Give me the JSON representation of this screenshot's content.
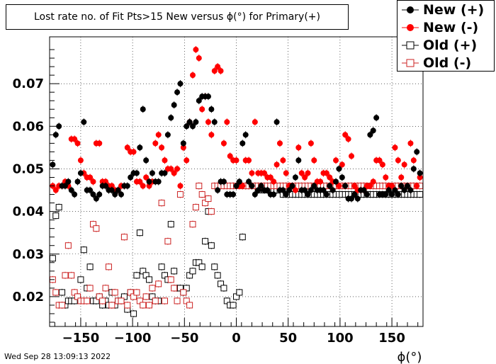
{
  "title": "Lost rate no. of Fit Pts>15 New versus ϕ(°) for Primary(+)",
  "timestamp": "Wed Sep 28 13:09:13 2022",
  "xaxis_label": "ϕ(°)",
  "legend": [
    {
      "label": "New (+)",
      "marker": "filled-circle",
      "color": "#000000"
    },
    {
      "label": "New (-)",
      "marker": "filled-circle",
      "color": "#ff0000"
    },
    {
      "label": "Old (+)",
      "marker": "open-square",
      "color": "#000000"
    },
    {
      "label": "Old (-)",
      "marker": "open-square",
      "color": "#cc2222"
    }
  ],
  "chart_data": {
    "type": "scatter",
    "xlim": [
      -180,
      180
    ],
    "ylim": [
      0.013,
      0.081
    ],
    "xticks": [
      -150,
      -100,
      -50,
      0,
      50,
      100,
      150
    ],
    "yticks": [
      0.02,
      0.03,
      0.04,
      0.05,
      0.06,
      0.07
    ],
    "ytick_labels": [
      "0.02",
      "0.03",
      "0.04",
      "0.05",
      "0.06",
      "0.07"
    ],
    "xtick_labels": [
      "−150",
      "−100",
      "−50",
      "0",
      "50",
      "100",
      "150"
    ],
    "grid": true,
    "legend_position": "top-right",
    "x": [
      -177,
      -174,
      -171,
      -168,
      -165,
      -162,
      -159,
      -156,
      -153,
      -150,
      -147,
      -144,
      -141,
      -138,
      -135,
      -132,
      -129,
      -126,
      -123,
      -120,
      -117,
      -114,
      -111,
      -108,
      -105,
      -102,
      -99,
      -96,
      -93,
      -90,
      -87,
      -84,
      -81,
      -78,
      -75,
      -72,
      -69,
      -66,
      -63,
      -60,
      -57,
      -54,
      -51,
      -48,
      -45,
      -42,
      -39,
      -36,
      -33,
      -30,
      -27,
      -24,
      -21,
      -18,
      -15,
      -12,
      -9,
      -6,
      -3,
      0,
      3,
      6,
      9,
      12,
      15,
      18,
      21,
      24,
      27,
      30,
      33,
      36,
      39,
      42,
      45,
      48,
      51,
      54,
      57,
      60,
      63,
      66,
      69,
      72,
      75,
      78,
      81,
      84,
      87,
      90,
      93,
      96,
      99,
      102,
      105,
      108,
      111,
      114,
      117,
      120,
      123,
      126,
      129,
      132,
      135,
      138,
      141,
      144,
      147,
      150,
      153,
      156,
      159,
      162,
      165,
      168,
      171,
      174,
      177
    ],
    "series": [
      {
        "name": "New (+)",
        "values": [
          0.051,
          0.058,
          0.06,
          0.046,
          0.046,
          0.047,
          0.045,
          0.044,
          0.047,
          0.049,
          0.061,
          0.045,
          0.045,
          0.044,
          0.043,
          0.044,
          0.046,
          0.046,
          0.045,
          0.045,
          0.044,
          0.045,
          0.044,
          0.046,
          0.046,
          0.048,
          0.049,
          0.049,
          0.055,
          0.064,
          0.052,
          0.047,
          0.049,
          0.047,
          0.047,
          0.049,
          0.049,
          0.058,
          0.062,
          0.065,
          0.068,
          0.07,
          0.056,
          0.06,
          0.061,
          0.06,
          0.061,
          0.066,
          0.067,
          0.067,
          0.067,
          0.064,
          0.061,
          0.045,
          0.047,
          0.047,
          0.044,
          0.044,
          0.044,
          0.046,
          0.047,
          0.056,
          0.058,
          0.047,
          0.046,
          0.044,
          0.045,
          0.046,
          0.045,
          0.045,
          0.044,
          0.044,
          0.061,
          0.045,
          0.045,
          0.044,
          0.045,
          0.046,
          0.048,
          0.052,
          0.045,
          0.045,
          0.044,
          0.045,
          0.046,
          0.045,
          0.045,
          0.045,
          0.044,
          0.046,
          0.045,
          0.047,
          0.05,
          0.048,
          0.046,
          0.043,
          0.043,
          0.044,
          0.043,
          0.045,
          0.045,
          0.044,
          0.058,
          0.059,
          0.062,
          0.044,
          0.044,
          0.044,
          0.045,
          0.044,
          0.045,
          0.044,
          0.046,
          0.045,
          0.046,
          0.045,
          0.05,
          0.054,
          0.049
        ]
      },
      {
        "name": "New (-)",
        "values": [
          0.046,
          0.045,
          0.046,
          0.046,
          0.047,
          0.046,
          0.057,
          0.057,
          0.056,
          0.052,
          0.049,
          0.048,
          0.048,
          0.047,
          0.056,
          0.056,
          0.047,
          0.047,
          0.046,
          0.046,
          0.045,
          0.045,
          0.046,
          0.046,
          0.055,
          0.054,
          0.054,
          0.047,
          0.047,
          0.046,
          0.048,
          0.046,
          0.047,
          0.056,
          0.058,
          0.055,
          0.052,
          0.05,
          0.05,
          0.049,
          0.05,
          0.046,
          0.055,
          0.052,
          0.061,
          0.072,
          0.078,
          0.076,
          0.064,
          0.067,
          0.061,
          0.058,
          0.073,
          0.074,
          0.073,
          0.056,
          0.061,
          0.053,
          0.052,
          0.052,
          0.046,
          0.046,
          0.052,
          0.052,
          0.049,
          0.061,
          0.049,
          0.049,
          0.049,
          0.048,
          0.048,
          0.047,
          0.051,
          0.056,
          0.052,
          0.049,
          0.046,
          0.046,
          0.045,
          0.055,
          0.049,
          0.048,
          0.049,
          0.056,
          0.052,
          0.047,
          0.047,
          0.049,
          0.049,
          0.048,
          0.047,
          0.052,
          0.046,
          0.051,
          0.058,
          0.057,
          0.053,
          0.046,
          0.045,
          0.045,
          0.045,
          0.046,
          0.046,
          0.047,
          0.052,
          0.052,
          0.051,
          0.048,
          0.046,
          0.046,
          0.055,
          0.052,
          0.048,
          0.051,
          0.046,
          0.056,
          0.052,
          0.046,
          0.048
        ]
      },
      {
        "name": "Old (+)",
        "values": [
          0.029,
          0.039,
          0.041,
          0.021,
          0.018,
          0.019,
          0.019,
          0.019,
          0.02,
          0.024,
          0.031,
          0.022,
          0.027,
          0.019,
          0.019,
          0.02,
          0.018,
          0.019,
          0.018,
          0.021,
          0.018,
          0.019,
          0.019,
          0.02,
          0.017,
          0.021,
          0.016,
          0.025,
          0.035,
          0.026,
          0.025,
          0.024,
          0.02,
          0.019,
          0.019,
          0.027,
          0.025,
          0.024,
          0.037,
          0.026,
          0.022,
          0.022,
          0.021,
          0.022,
          0.025,
          0.026,
          0.028,
          0.028,
          0.027,
          0.033,
          0.04,
          0.032,
          0.027,
          0.025,
          0.023,
          0.022,
          0.019,
          0.018,
          0.018,
          0.02,
          0.021,
          0.034,
          0.046,
          0.046,
          0.046,
          0.046,
          0.045,
          0.046,
          0.045,
          0.045,
          0.045,
          0.045,
          0.045,
          0.045,
          0.044,
          0.044,
          0.044,
          0.044,
          0.044,
          0.044,
          0.044,
          0.044,
          0.044,
          0.044,
          0.044,
          0.044,
          0.044,
          0.044,
          0.044,
          0.044,
          0.044,
          0.044,
          0.044,
          0.044,
          0.044,
          0.044,
          0.044,
          0.044,
          0.044,
          0.044,
          0.044,
          0.044,
          0.044,
          0.044,
          0.044,
          0.044,
          0.044,
          0.044,
          0.044,
          0.044,
          0.044,
          0.044,
          0.044,
          0.044,
          0.044,
          0.044,
          0.044,
          0.044,
          0.044
        ]
      },
      {
        "name": "Old (-)",
        "values": [
          0.024,
          0.021,
          0.018,
          0.018,
          0.025,
          0.032,
          0.025,
          0.021,
          0.02,
          0.019,
          0.019,
          0.019,
          0.022,
          0.037,
          0.036,
          0.02,
          0.019,
          0.022,
          0.027,
          0.018,
          0.021,
          0.019,
          0.019,
          0.034,
          0.018,
          0.021,
          0.02,
          0.021,
          0.019,
          0.018,
          0.02,
          0.018,
          0.022,
          0.019,
          0.023,
          0.042,
          0.019,
          0.033,
          0.024,
          0.022,
          0.019,
          0.044,
          0.021,
          0.019,
          0.018,
          0.037,
          0.041,
          0.046,
          0.044,
          0.042,
          0.043,
          0.04,
          0.046,
          0.046,
          0.046,
          0.046,
          0.046,
          0.046,
          0.046,
          0.046,
          0.046,
          0.046,
          0.046,
          0.046,
          0.046,
          0.046,
          0.046,
          0.046,
          0.046,
          0.046,
          0.046,
          0.046,
          0.046,
          0.046,
          0.046,
          0.046,
          0.046,
          0.046,
          0.046,
          0.046,
          0.046,
          0.046,
          0.046,
          0.046,
          0.046,
          0.046,
          0.046,
          0.046,
          0.046,
          0.046,
          0.046,
          0.046,
          0.046,
          0.046,
          0.046,
          0.046,
          0.046,
          0.046,
          0.046,
          0.046,
          0.046,
          0.046,
          0.046,
          0.046,
          0.046,
          0.046,
          0.046,
          0.046,
          0.046,
          0.046,
          0.046,
          0.046,
          0.046,
          0.046,
          0.046,
          0.046,
          0.046,
          0.046,
          0.046
        ]
      }
    ]
  }
}
